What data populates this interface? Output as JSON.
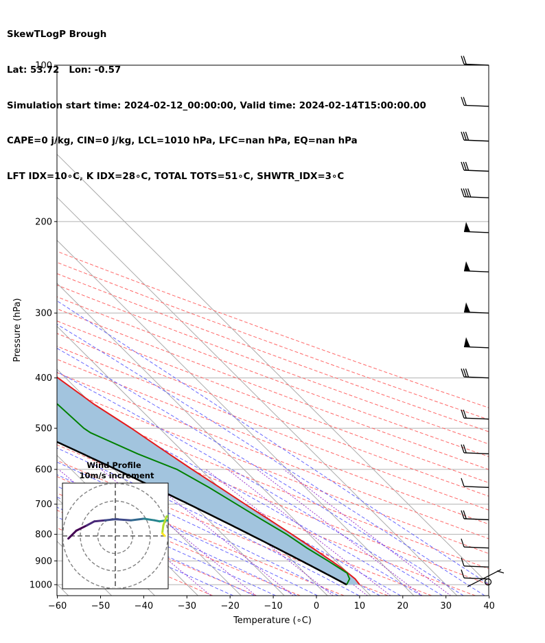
{
  "header": {
    "line1": "SkewTLogP Brough",
    "line2": "Lat: 53.72   Lon: -0.57",
    "line3": "Simulation start time: 2024-02-12_00:00:00, Valid time: 2024-02-14T15:00:00.00",
    "line4": "CAPE=0 j/kg, CIN=0 j/kg, LCL=1010 hPa, LFC=nan hPa, EQ=nan hPa",
    "line5": "LFT IDX=10∘C, K IDX=28∘C, TOTAL TOTS=51∘C, SHWTR_IDX=3∘C"
  },
  "chart_data": {
    "type": "skewt-logp",
    "xlabel": "Temperature (∘C)",
    "ylabel": "Pressure (hPa)",
    "xlim": [
      -60,
      40
    ],
    "ylim": [
      1050,
      100
    ],
    "x_ticks": [
      "−60",
      "−50",
      "−40",
      "−30",
      "−20",
      "−10",
      "0",
      "10",
      "20",
      "30",
      "40"
    ],
    "y_ticks": [
      "100",
      "200",
      "300",
      "400",
      "500",
      "600",
      "700",
      "800",
      "900",
      "1000"
    ],
    "grid": true,
    "colors": {
      "temperature": "#e41a1c",
      "dewpoint": "#008000",
      "parcel": "#000000",
      "fill": "#a2c4de",
      "isotherm": "#aaaaaa",
      "dry_adiabat": "#ff6666",
      "moist_adiabat": "#6666ff",
      "mixing_ratio": "#9933cc"
    },
    "temperature_profile": [
      [
        1000,
        10
      ],
      [
        975,
        10.3
      ],
      [
        950,
        10
      ],
      [
        925,
        9.6
      ],
      [
        900,
        9.0
      ],
      [
        850,
        7.6
      ],
      [
        800,
        6.0
      ],
      [
        750,
        4.2
      ],
      [
        700,
        2.2
      ],
      [
        650,
        0.2
      ],
      [
        600,
        -2.0
      ],
      [
        550,
        -4.2
      ],
      [
        500,
        -6.5
      ],
      [
        450,
        -9.5
      ],
      [
        400,
        -11.8
      ],
      [
        370,
        -12.3
      ],
      [
        350,
        -14.0
      ],
      [
        320,
        -17.2
      ],
      [
        300,
        -19.5
      ],
      [
        270,
        -24.0
      ],
      [
        250,
        -28.0
      ],
      [
        235,
        -29.5
      ],
      [
        220,
        -29.0
      ],
      [
        200,
        -29.5
      ],
      [
        185,
        -31.8
      ],
      [
        170,
        -33.0
      ],
      [
        150,
        -34.5
      ],
      [
        130,
        -37.5
      ],
      [
        115,
        -40.5
      ],
      [
        100,
        -42.5
      ]
    ],
    "dewpoint_profile": [
      [
        1000,
        7.0
      ],
      [
        975,
        9.0
      ],
      [
        950,
        9.8
      ],
      [
        925,
        9.0
      ],
      [
        900,
        8.2
      ],
      [
        850,
        6.3
      ],
      [
        800,
        4.8
      ],
      [
        750,
        2.5
      ],
      [
        700,
        0.2
      ],
      [
        650,
        -2.3
      ],
      [
        600,
        -5.5
      ],
      [
        560,
        -11.0
      ],
      [
        510,
        -17.0
      ],
      [
        500,
        -17.5
      ],
      [
        450,
        -18.0
      ],
      [
        420,
        -19.0
      ],
      [
        390,
        -21.0
      ],
      [
        360,
        -25.0
      ],
      [
        330,
        -25.2
      ],
      [
        300,
        -26.0
      ],
      [
        285,
        -24.3
      ],
      [
        260,
        -29.0
      ],
      [
        240,
        -32.5
      ],
      [
        220,
        -31.5
      ],
      [
        205,
        -31.5
      ],
      [
        190,
        -34.0
      ],
      [
        172,
        -38.0
      ],
      [
        162,
        -38.5
      ],
      [
        140,
        -43.0
      ],
      [
        115,
        -51.0
      ],
      [
        100,
        -57.0
      ]
    ],
    "parcel_start": {
      "pressure": 1000,
      "temperature": 7.0
    },
    "wind_barbs": [
      {
        "p": 100,
        "kind": "2F"
      },
      {
        "p": 120,
        "kind": "2F"
      },
      {
        "p": 140,
        "kind": "3F"
      },
      {
        "p": 160,
        "kind": "3F"
      },
      {
        "p": 180,
        "kind": "4F"
      },
      {
        "p": 210,
        "kind": "P"
      },
      {
        "p": 250,
        "kind": "P"
      },
      {
        "p": 300,
        "kind": "P"
      },
      {
        "p": 350,
        "kind": "P"
      },
      {
        "p": 400,
        "kind": "3F"
      },
      {
        "p": 480,
        "kind": "2F"
      },
      {
        "p": 560,
        "kind": "2F"
      },
      {
        "p": 650,
        "kind": "1F"
      },
      {
        "p": 750,
        "kind": "2F"
      },
      {
        "p": 850,
        "kind": "1F"
      },
      {
        "p": 925,
        "kind": "1F"
      },
      {
        "p": 975,
        "kind": "1F"
      },
      {
        "p": 1000,
        "kind": "calm"
      }
    ],
    "inset": {
      "title_line1": "Wind Profile",
      "title_line2": "10m/s increment",
      "hodograph": [
        [
          -0.9,
          -0.05
        ],
        [
          -0.75,
          0.1
        ],
        [
          -0.55,
          0.2
        ],
        [
          -0.4,
          0.28
        ],
        [
          -0.2,
          0.3
        ],
        [
          0.0,
          0.32
        ],
        [
          0.3,
          0.3
        ],
        [
          0.55,
          0.33
        ],
        [
          0.75,
          0.3
        ],
        [
          0.85,
          0.28
        ],
        [
          0.98,
          0.3
        ],
        [
          1.05,
          0.28
        ],
        [
          1.1,
          0.34
        ],
        [
          1.05,
          0.4
        ],
        [
          0.98,
          0.37
        ],
        [
          0.92,
          0.2
        ],
        [
          0.9,
          0.05
        ],
        [
          0.95,
          0.0
        ]
      ]
    }
  }
}
